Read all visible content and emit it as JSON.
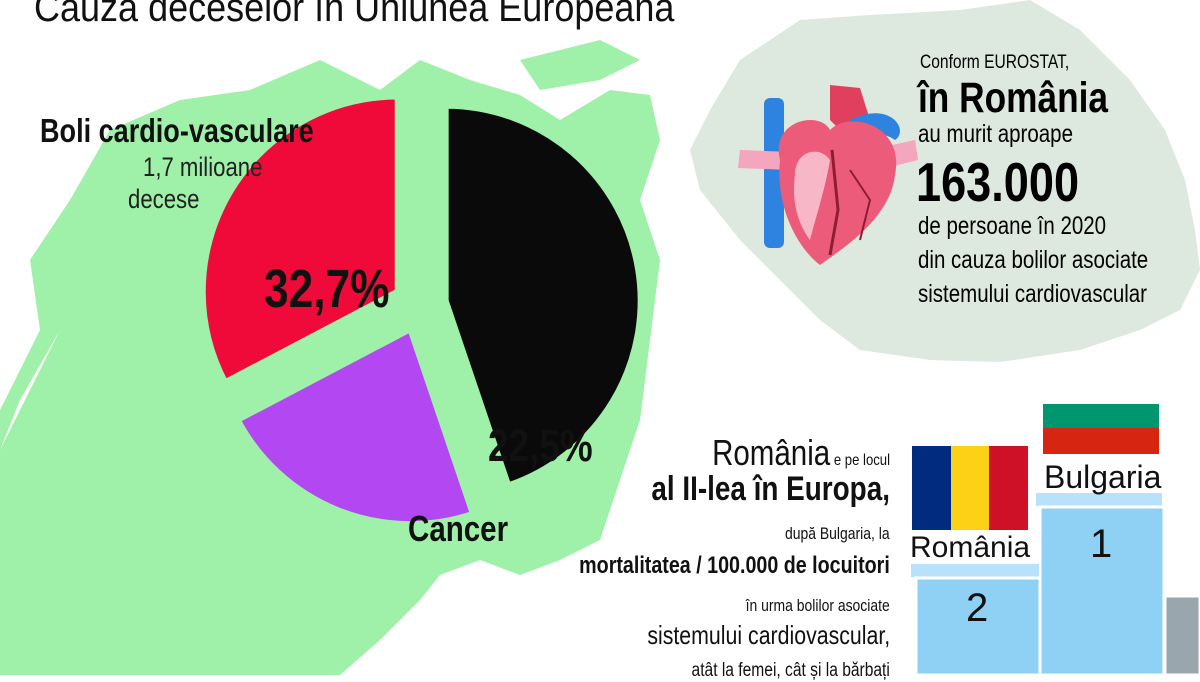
{
  "title": "Cauza deceselor în Uniunea Europeană",
  "chart_data": {
    "type": "pie",
    "slices": [
      {
        "label": "Boli cardio-vasculare",
        "value": 32.7,
        "value_label": "32,7%",
        "color": "#ef0a3a",
        "exploded": true
      },
      {
        "label": "Cancer",
        "value": 22.5,
        "value_label": "22,5%",
        "color": "#b347f2",
        "exploded": true
      },
      {
        "label": "",
        "value": 44.8,
        "value_label": "",
        "color": "#0a0a0a",
        "exploded": true
      }
    ],
    "annotations": {
      "cardio_title": "Boli cardio-vasculare",
      "cardio_sub1": "1,7 milioane",
      "cardio_sub2": "decese",
      "cancer": "Cancer"
    }
  },
  "romania_info": {
    "line1": "Conform EUROSTAT,",
    "line2": "în România",
    "line3": "au murit aproape",
    "line4": "163.000",
    "line5": "de persoane în 2020",
    "line6": "din cauza bolilor asociate",
    "line7": "sistemului cardiovascular"
  },
  "ranking_text": {
    "l1_big": "România",
    "l1_small": " e pe locul",
    "l2": "al II-lea în Europa,",
    "l3": "după Bulgaria, la",
    "l4": "mortalitatea / 100.000 de locuitori",
    "l5": "în urma bolilor asociate",
    "l6": "sistemului cardiovascular,",
    "l7": "atât la femei, cât și la bărbați"
  },
  "podium": [
    {
      "rank": "1",
      "country": "Bulgaria",
      "flag": [
        "#ffffff",
        "#00966e",
        "#d62612"
      ]
    },
    {
      "rank": "2",
      "country": "România",
      "flag": [
        "#002b7f",
        "#fcd116",
        "#ce1126"
      ]
    }
  ],
  "colors": {
    "map_green": "#9ff0a8",
    "romania_map": "#dde8de",
    "podium_blue": "#8fd0f5"
  }
}
